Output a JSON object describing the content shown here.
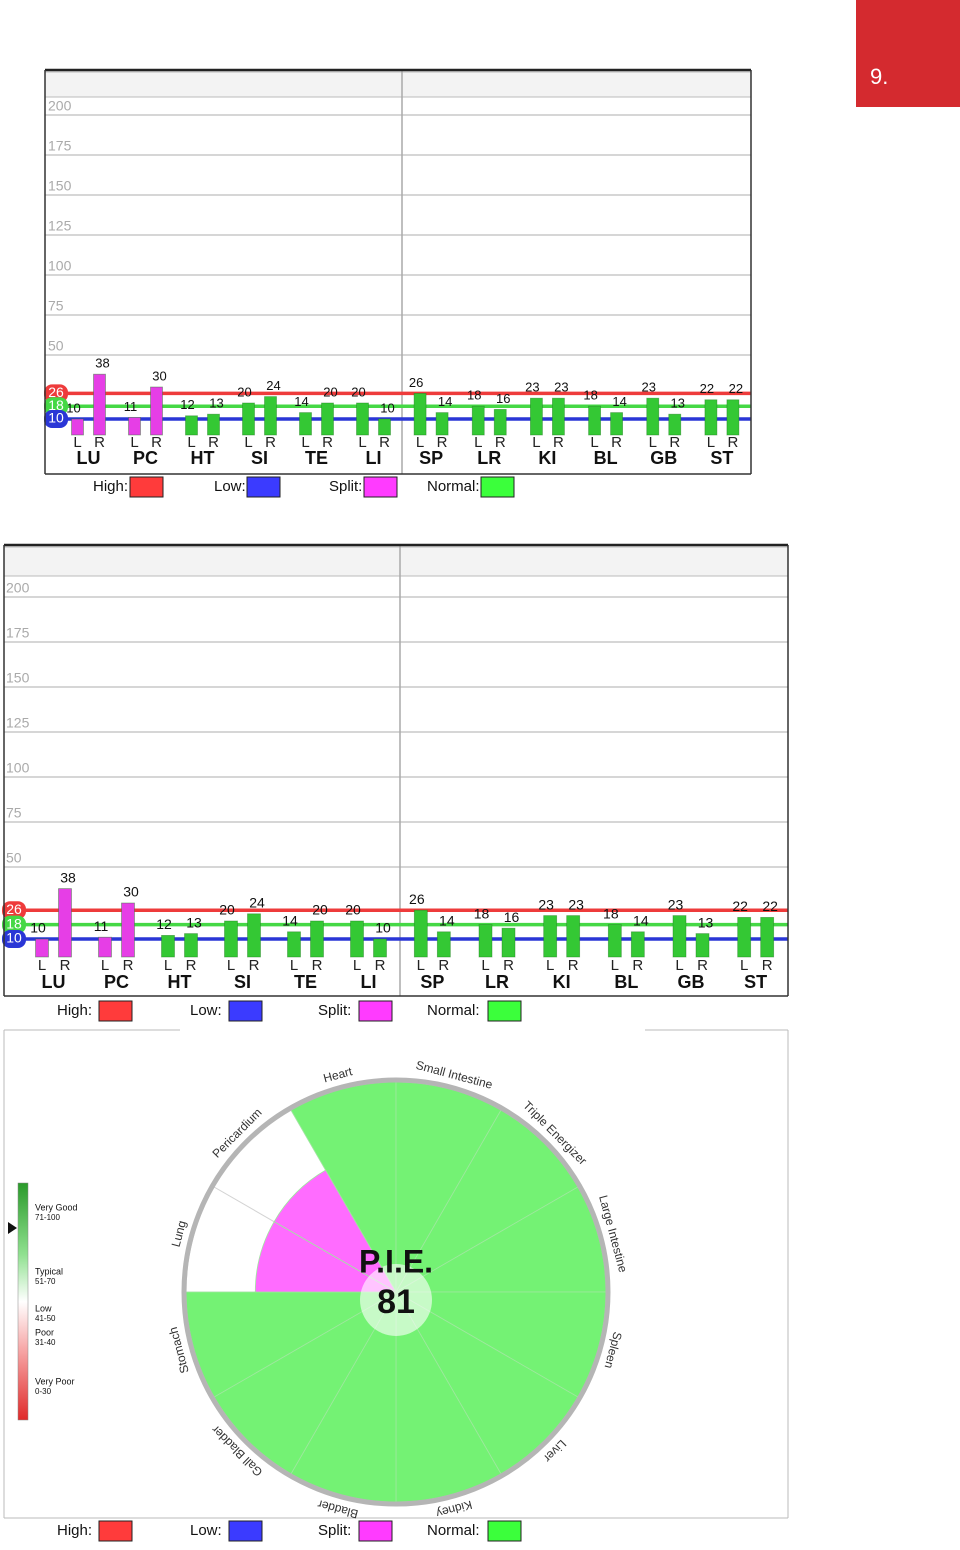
{
  "page_number": "9.",
  "chart_data": [
    {
      "type": "bar",
      "groups": [
        "LU",
        "PC",
        "HT",
        "SI",
        "TE",
        "LI",
        "SP",
        "LR",
        "KI",
        "BL",
        "GB",
        "ST"
      ],
      "series": [
        {
          "name": "L",
          "values": [
            10,
            11,
            12,
            20,
            14,
            20,
            26,
            18,
            23,
            18,
            23,
            22
          ]
        },
        {
          "name": "R",
          "values": [
            38,
            30,
            13,
            24,
            20,
            10,
            14,
            16,
            23,
            14,
            13,
            22
          ]
        }
      ],
      "group_colors": [
        "#e63ee6",
        "#e63ee6",
        "#34c834",
        "#34c834",
        "#34c834",
        "#34c834",
        "#34c834",
        "#34c834",
        "#34c834",
        "#34c834",
        "#34c834",
        "#34c834"
      ],
      "ylim": [
        0,
        200
      ],
      "yticks": [
        50,
        75,
        100,
        125,
        150,
        175,
        200
      ],
      "grid": true,
      "reference_lines": [
        {
          "value": 26,
          "color": "#ee3b3b"
        },
        {
          "value": 18,
          "color": "#45d845"
        },
        {
          "value": 10,
          "color": "#2a36d6"
        }
      ],
      "legend": [
        {
          "name": "High:",
          "color": "#ff3b3b"
        },
        {
          "name": "Low:",
          "color": "#3b3bff"
        },
        {
          "name": "Split:",
          "color": "#ff3bff"
        },
        {
          "name": "Normal:",
          "color": "#3bff3b"
        }
      ]
    },
    {
      "type": "bar",
      "groups": [
        "LU",
        "PC",
        "HT",
        "SI",
        "TE",
        "LI",
        "SP",
        "LR",
        "KI",
        "BL",
        "GB",
        "ST"
      ],
      "series": [
        {
          "name": "L",
          "values": [
            10,
            11,
            12,
            20,
            14,
            20,
            26,
            18,
            23,
            18,
            23,
            22
          ]
        },
        {
          "name": "R",
          "values": [
            38,
            30,
            13,
            24,
            20,
            10,
            14,
            16,
            23,
            14,
            13,
            22
          ]
        }
      ],
      "group_colors": [
        "#e63ee6",
        "#e63ee6",
        "#34c834",
        "#34c834",
        "#34c834",
        "#34c834",
        "#34c834",
        "#34c834",
        "#34c834",
        "#34c834",
        "#34c834",
        "#34c834"
      ],
      "ylim": [
        0,
        200
      ],
      "yticks": [
        50,
        75,
        100,
        125,
        150,
        175,
        200
      ],
      "grid": true,
      "reference_lines": [
        {
          "value": 26,
          "color": "#ee3b3b"
        },
        {
          "value": 18,
          "color": "#45d845"
        },
        {
          "value": 10,
          "color": "#2a36d6"
        }
      ],
      "legend": [
        {
          "name": "High:",
          "color": "#ff3b3b"
        },
        {
          "name": "Low:",
          "color": "#3b3bff"
        },
        {
          "name": "Split:",
          "color": "#ff3bff"
        },
        {
          "name": "Normal:",
          "color": "#3bff3b"
        }
      ]
    },
    {
      "type": "polar",
      "title": "P.I.E.",
      "score": 81,
      "categories": [
        "Heart",
        "Small Intestine",
        "Triple Energizer",
        "Large Intestine",
        "Spleen",
        "Liver",
        "Kidney",
        "Bladder",
        "Gall Bladder",
        "Stomach",
        "Lung",
        "Pericardium"
      ],
      "values": [
        100,
        100,
        100,
        100,
        100,
        100,
        100,
        100,
        100,
        100,
        67,
        67
      ],
      "colors": [
        "#74f274",
        "#74f274",
        "#74f274",
        "#74f274",
        "#74f274",
        "#74f274",
        "#74f274",
        "#74f274",
        "#74f274",
        "#74f274",
        "#ff6cff",
        "#ff6cff"
      ],
      "rlim": [
        0,
        100
      ],
      "scale": {
        "lim": [
          0,
          100
        ],
        "levels": [
          {
            "label": "Very Good",
            "range": "71-100"
          },
          {
            "label": "Typical",
            "range": "51-70"
          },
          {
            "label": "Low",
            "range": "41-50"
          },
          {
            "label": "Poor",
            "range": "31-40"
          },
          {
            "label": "Very Poor",
            "range": "0-30"
          }
        ]
      },
      "legend": [
        {
          "name": "High:",
          "color": "#ff3b3b"
        },
        {
          "name": "Low:",
          "color": "#3b3bff"
        },
        {
          "name": "Split:",
          "color": "#ff3bff"
        },
        {
          "name": "Normal:",
          "color": "#3bff3b"
        }
      ]
    }
  ]
}
